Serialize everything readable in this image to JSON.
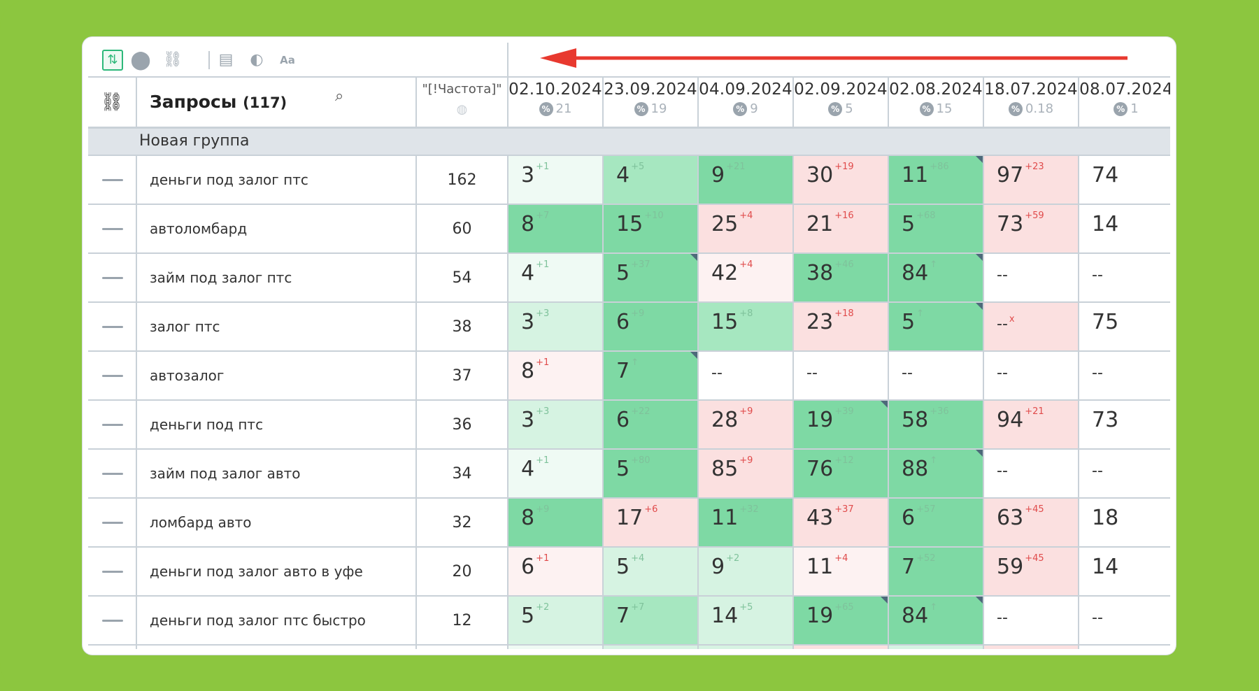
{
  "toolbar": {
    "icons": [
      "sort-icon",
      "toggle-icon",
      "link-icon",
      "calendar-icon",
      "contrast-icon",
      "font-icon"
    ]
  },
  "header": {
    "link_icon": "link-icon",
    "queries_label": "Запросы",
    "queries_count": "(117)",
    "freq_label": "\"[!Частота]\"",
    "dates": [
      {
        "date": "02.10.2024",
        "sub": "21"
      },
      {
        "date": "23.09.2024",
        "sub": "19"
      },
      {
        "date": "04.09.2024",
        "sub": "9"
      },
      {
        "date": "02.09.2024",
        "sub": "5"
      },
      {
        "date": "02.08.2024",
        "sub": "15"
      },
      {
        "date": "18.07.2024",
        "sub": "0.18"
      },
      {
        "date": "08.07.2024",
        "sub": "1"
      }
    ],
    "percent_symbol": "%"
  },
  "group": {
    "name": "Новая группа"
  },
  "colors": {
    "background": "#8cc63f",
    "green_dark": "#7ed9a4",
    "green_mid": "#a6e7c0",
    "green_light": "#d6f3e2",
    "green_faint": "#effaf4",
    "red_light": "#fbe0e0",
    "red_faint": "#fdf2f2",
    "arrow": "#e8392f"
  },
  "rows": [
    {
      "query": "деньги под залог птс",
      "freq": "162",
      "cells": [
        {
          "v": "3",
          "d": "+1",
          "dir": "up",
          "bg": "green_faint"
        },
        {
          "v": "4",
          "d": "+5",
          "dir": "up",
          "bg": "green_mid"
        },
        {
          "v": "9",
          "d": "+21",
          "dir": "up",
          "bg": "green_dark"
        },
        {
          "v": "30",
          "d": "+19",
          "dir": "dn",
          "bg": "red_light"
        },
        {
          "v": "11",
          "d": "+86",
          "dir": "up",
          "bg": "green_dark",
          "corner": true
        },
        {
          "v": "97",
          "d": "+23",
          "dir": "dn",
          "bg": "red_light"
        },
        {
          "v": "74",
          "d": "",
          "dir": "",
          "bg": "white"
        }
      ]
    },
    {
      "query": "автоломбард",
      "freq": "60",
      "cells": [
        {
          "v": "8",
          "d": "+7",
          "dir": "up",
          "bg": "green_dark"
        },
        {
          "v": "15",
          "d": "+10",
          "dir": "up",
          "bg": "green_dark"
        },
        {
          "v": "25",
          "d": "+4",
          "dir": "dn",
          "bg": "red_light"
        },
        {
          "v": "21",
          "d": "+16",
          "dir": "dn",
          "bg": "red_light"
        },
        {
          "v": "5",
          "d": "+68",
          "dir": "up",
          "bg": "green_dark"
        },
        {
          "v": "73",
          "d": "+59",
          "dir": "dn",
          "bg": "red_light"
        },
        {
          "v": "14",
          "d": "",
          "dir": "",
          "bg": "white"
        }
      ]
    },
    {
      "query": "займ под залог птс",
      "freq": "54",
      "cells": [
        {
          "v": "4",
          "d": "+1",
          "dir": "up",
          "bg": "green_faint"
        },
        {
          "v": "5",
          "d": "+37",
          "dir": "up",
          "bg": "green_dark",
          "corner": true
        },
        {
          "v": "42",
          "d": "+4",
          "dir": "dn",
          "bg": "red_faint"
        },
        {
          "v": "38",
          "d": "+46",
          "dir": "up",
          "bg": "green_dark"
        },
        {
          "v": "84",
          "d": "↑",
          "dir": "up",
          "bg": "green_dark",
          "corner": true
        },
        {
          "v": "--",
          "d": "",
          "dir": "",
          "bg": "white",
          "dash": true
        },
        {
          "v": "--",
          "d": "",
          "dir": "",
          "bg": "white",
          "dash": true
        }
      ]
    },
    {
      "query": "залог птс",
      "freq": "38",
      "cells": [
        {
          "v": "3",
          "d": "+3",
          "dir": "up",
          "bg": "green_light"
        },
        {
          "v": "6",
          "d": "+9",
          "dir": "up",
          "bg": "green_dark"
        },
        {
          "v": "15",
          "d": "+8",
          "dir": "up",
          "bg": "green_mid"
        },
        {
          "v": "23",
          "d": "+18",
          "dir": "dn",
          "bg": "red_light"
        },
        {
          "v": "5",
          "d": "↑",
          "dir": "up",
          "bg": "green_dark",
          "corner": true
        },
        {
          "v": "--",
          "d": "x",
          "dir": "dn",
          "bg": "red_light",
          "dash": true
        },
        {
          "v": "75",
          "d": "",
          "dir": "",
          "bg": "white"
        }
      ]
    },
    {
      "query": "автозалог",
      "freq": "37",
      "cells": [
        {
          "v": "8",
          "d": "+1",
          "dir": "dn",
          "bg": "red_faint"
        },
        {
          "v": "7",
          "d": "↑",
          "dir": "up",
          "bg": "green_dark",
          "corner": true
        },
        {
          "v": "--",
          "d": "",
          "dir": "",
          "bg": "white",
          "dash": true
        },
        {
          "v": "--",
          "d": "",
          "dir": "",
          "bg": "white",
          "dash": true
        },
        {
          "v": "--",
          "d": "",
          "dir": "",
          "bg": "white",
          "dash": true
        },
        {
          "v": "--",
          "d": "",
          "dir": "",
          "bg": "white",
          "dash": true
        },
        {
          "v": "--",
          "d": "",
          "dir": "",
          "bg": "white",
          "dash": true
        }
      ]
    },
    {
      "query": "деньги под птс",
      "freq": "36",
      "cells": [
        {
          "v": "3",
          "d": "+3",
          "dir": "up",
          "bg": "green_light"
        },
        {
          "v": "6",
          "d": "+22",
          "dir": "up",
          "bg": "green_dark"
        },
        {
          "v": "28",
          "d": "+9",
          "dir": "dn",
          "bg": "red_light"
        },
        {
          "v": "19",
          "d": "+39",
          "dir": "up",
          "bg": "green_dark",
          "corner": true
        },
        {
          "v": "58",
          "d": "+36",
          "dir": "up",
          "bg": "green_dark"
        },
        {
          "v": "94",
          "d": "+21",
          "dir": "dn",
          "bg": "red_light"
        },
        {
          "v": "73",
          "d": "",
          "dir": "",
          "bg": "white"
        }
      ]
    },
    {
      "query": "займ под залог авто",
      "freq": "34",
      "cells": [
        {
          "v": "4",
          "d": "+1",
          "dir": "up",
          "bg": "green_faint"
        },
        {
          "v": "5",
          "d": "+80",
          "dir": "up",
          "bg": "green_dark"
        },
        {
          "v": "85",
          "d": "+9",
          "dir": "dn",
          "bg": "red_light"
        },
        {
          "v": "76",
          "d": "+12",
          "dir": "up",
          "bg": "green_dark"
        },
        {
          "v": "88",
          "d": "↑",
          "dir": "up",
          "bg": "green_dark",
          "corner": true
        },
        {
          "v": "--",
          "d": "",
          "dir": "",
          "bg": "white",
          "dash": true
        },
        {
          "v": "--",
          "d": "",
          "dir": "",
          "bg": "white",
          "dash": true
        }
      ]
    },
    {
      "query": "ломбард авто",
      "freq": "32",
      "cells": [
        {
          "v": "8",
          "d": "+9",
          "dir": "up",
          "bg": "green_dark"
        },
        {
          "v": "17",
          "d": "+6",
          "dir": "dn",
          "bg": "red_light"
        },
        {
          "v": "11",
          "d": "+32",
          "dir": "up",
          "bg": "green_dark"
        },
        {
          "v": "43",
          "d": "+37",
          "dir": "dn",
          "bg": "red_light"
        },
        {
          "v": "6",
          "d": "+57",
          "dir": "up",
          "bg": "green_dark"
        },
        {
          "v": "63",
          "d": "+45",
          "dir": "dn",
          "bg": "red_light"
        },
        {
          "v": "18",
          "d": "",
          "dir": "",
          "bg": "white"
        }
      ]
    },
    {
      "query": "деньги под залог авто в уфе",
      "freq": "20",
      "cells": [
        {
          "v": "6",
          "d": "+1",
          "dir": "dn",
          "bg": "red_faint"
        },
        {
          "v": "5",
          "d": "+4",
          "dir": "up",
          "bg": "green_light"
        },
        {
          "v": "9",
          "d": "+2",
          "dir": "up",
          "bg": "green_light"
        },
        {
          "v": "11",
          "d": "+4",
          "dir": "dn",
          "bg": "red_faint"
        },
        {
          "v": "7",
          "d": "+52",
          "dir": "up",
          "bg": "green_dark"
        },
        {
          "v": "59",
          "d": "+45",
          "dir": "dn",
          "bg": "red_light"
        },
        {
          "v": "14",
          "d": "",
          "dir": "",
          "bg": "white"
        }
      ]
    },
    {
      "query": "деньги под залог птс быстро",
      "freq": "12",
      "cells": [
        {
          "v": "5",
          "d": "+2",
          "dir": "up",
          "bg": "green_light"
        },
        {
          "v": "7",
          "d": "+7",
          "dir": "up",
          "bg": "green_mid"
        },
        {
          "v": "14",
          "d": "+5",
          "dir": "up",
          "bg": "green_light"
        },
        {
          "v": "19",
          "d": "+65",
          "dir": "up",
          "bg": "green_dark",
          "corner": true
        },
        {
          "v": "84",
          "d": "↑",
          "dir": "up",
          "bg": "green_dark",
          "corner": true
        },
        {
          "v": "--",
          "d": "",
          "dir": "",
          "bg": "white",
          "dash": true
        },
        {
          "v": "--",
          "d": "",
          "dir": "",
          "bg": "white",
          "dash": true
        }
      ]
    }
  ]
}
